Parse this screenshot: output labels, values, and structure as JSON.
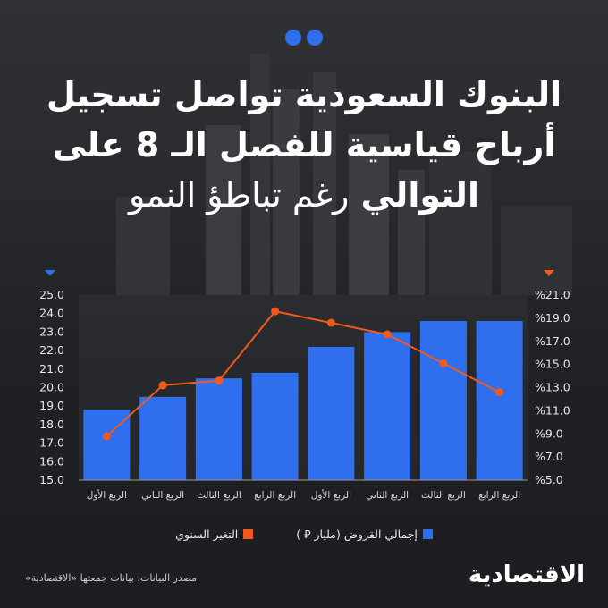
{
  "title": {
    "line1": "البنوك السعودية تواصل تسجيل",
    "line2": "أرباح قياسية للفصل الـ 8 على",
    "line3_bold": "التوالي",
    "line3_light": "رغم تباطؤ النمو"
  },
  "legend": {
    "loans": "إجمالي القروض (مليار ⃁ )",
    "change": "التغير السنوي"
  },
  "source": "مصدر البيانات: بيانات جمعتها «الاقتصادية»",
  "brand": "الاقتصادية",
  "colors": {
    "bar": "#2f6fed",
    "line": "#f25a1c",
    "accent_dot": "#2f6fed"
  },
  "chart_data": {
    "type": "bar",
    "categories": [
      "الربع الأول",
      "الربع الثاني",
      "الربع الثالث",
      "الربع الرابع",
      "الربع الأول",
      "الربع الثاني",
      "الربع الثالث",
      "الربع الرابع"
    ],
    "series": [
      {
        "name": "إجمالي القروض (مليار ⃁ )",
        "type": "bar",
        "axis": "left",
        "values": [
          18.8,
          19.5,
          20.5,
          20.8,
          22.2,
          23.0,
          23.6,
          23.6
        ]
      },
      {
        "name": "التغير السنوي",
        "type": "line",
        "axis": "right",
        "values": [
          8.8,
          13.2,
          13.6,
          19.6,
          18.6,
          17.6,
          15.1,
          12.6
        ]
      }
    ],
    "y_left": {
      "ylim": [
        15.0,
        25.0
      ],
      "ticks": [
        "15.0",
        "16.0",
        "17.0",
        "18.0",
        "19.0",
        "20.0",
        "21.0",
        "22.0",
        "23.0",
        "24.0",
        "25.0"
      ]
    },
    "y_right": {
      "ylim": [
        5.0,
        21.0
      ],
      "ticks": [
        "%5.0",
        "%7.0",
        "%9.0",
        "%11.0",
        "%13.0",
        "%15.0",
        "%17.0",
        "%19.0",
        "%21.0"
      ]
    }
  }
}
